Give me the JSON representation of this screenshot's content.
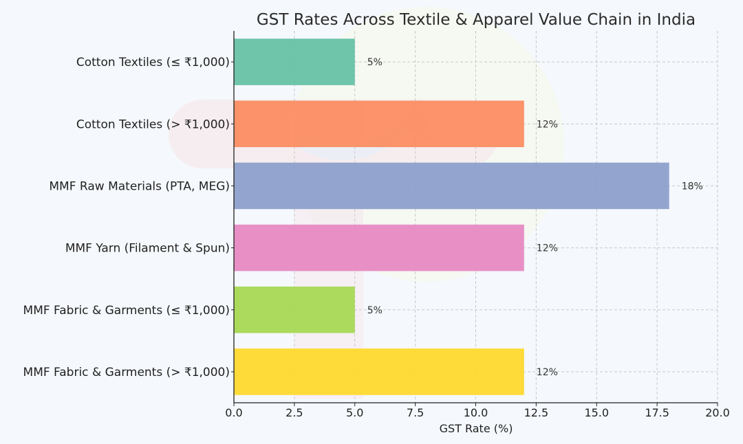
{
  "chart_data": {
    "type": "bar",
    "orientation": "horizontal",
    "title": "GST Rates Across Textile & Apparel Value Chain in India",
    "xlabel": "GST Rate (%)",
    "ylabel": "",
    "xlim": [
      0,
      20
    ],
    "xticks": [
      "0.0",
      "2.5",
      "5.0",
      "7.5",
      "10.0",
      "12.5",
      "15.0",
      "17.5",
      "20.0"
    ],
    "grid": true,
    "categories": [
      "Cotton Textiles (≤ ₹1,000)",
      "Cotton Textiles (> ₹1,000)",
      "MMF Raw Materials (PTA, MEG)",
      "MMF Yarn (Filament & Spun)",
      "MMF Fabric & Garments (≤ ₹1,000)",
      "MMF Fabric & Garments (> ₹1,000)"
    ],
    "values": [
      5,
      12,
      18,
      12,
      5,
      12
    ],
    "data_labels": [
      "5%",
      "12%",
      "18%",
      "12%",
      "5%",
      "12%"
    ],
    "colors": [
      "#66c2a5",
      "#fc8d62",
      "#8da0cb",
      "#e78ac3",
      "#a6d854",
      "#ffd92f"
    ]
  }
}
